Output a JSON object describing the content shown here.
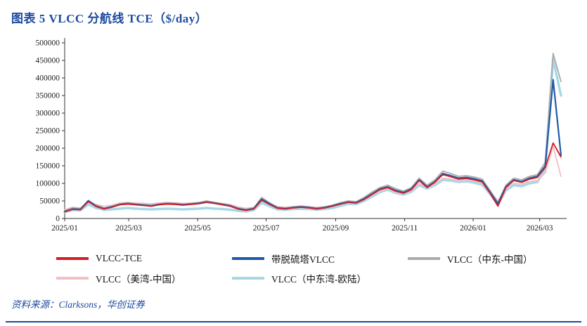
{
  "header": {
    "title": "图表 5  VLCC 分航线 TCE（$/day）"
  },
  "source": {
    "text": "资料来源：Clarksons，华创证券"
  },
  "colors": {
    "accent": "#1D4BA0",
    "axis": "#333333"
  },
  "legend": {
    "items": [
      {
        "label": "VLCC-TCE",
        "color": "#D41E26"
      },
      {
        "label": "带脱硫塔VLCC",
        "color": "#1F5BA8"
      },
      {
        "label": "VLCC（中东-中国）",
        "color": "#ABABAB"
      },
      {
        "label": "VLCC（美湾-中国）",
        "color": "#F3BFC3"
      },
      {
        "label": "VLCC（中东湾-欧陆）",
        "color": "#A8D8E8"
      }
    ]
  },
  "chart_data": {
    "type": "line",
    "title": "VLCC 分航线 TCE（$/day）",
    "ylabel": "",
    "xlabel": "",
    "ylim": [
      0,
      500000
    ],
    "grid": false,
    "legend_position": "bottom",
    "y_ticks": [
      0,
      50000,
      100000,
      150000,
      200000,
      250000,
      300000,
      350000,
      400000,
      450000,
      500000
    ],
    "x_ticks": [
      {
        "label": "2025/01",
        "f": 0.0
      },
      {
        "label": "2025/03",
        "f": 0.129
      },
      {
        "label": "2025/05",
        "f": 0.268
      },
      {
        "label": "2025/07",
        "f": 0.406
      },
      {
        "label": "2025/09",
        "f": 0.546
      },
      {
        "label": "2025/11",
        "f": 0.685
      },
      {
        "label": "2026/01",
        "f": 0.823
      },
      {
        "label": "2026/03",
        "f": 0.957
      }
    ],
    "x_range": [
      "2025/01",
      "2026/03"
    ],
    "series": [
      {
        "name": "VLCC-TCE",
        "color": "#D41E26",
        "values": [
          19000,
          26000,
          25000,
          48000,
          34000,
          27000,
          32000,
          39000,
          41000,
          39000,
          37000,
          35000,
          39000,
          41000,
          40000,
          38000,
          40000,
          42000,
          46000,
          43000,
          39000,
          35000,
          27000,
          23000,
          27000,
          52000,
          40000,
          29000,
          27000,
          30000,
          32000,
          30000,
          27000,
          30000,
          35000,
          41000,
          46000,
          44000,
          54000,
          68000,
          82000,
          88000,
          78000,
          72000,
          82000,
          108000,
          88000,
          103000,
          125000,
          119000,
          112000,
          114000,
          110000,
          104000,
          72000,
          35000,
          88000,
          108000,
          103000,
          112000,
          117000,
          145000,
          215000,
          175000
        ]
      },
      {
        "name": "带脱硫塔VLCC",
        "color": "#1F5BA8",
        "values": [
          20000,
          27000,
          26000,
          50000,
          35000,
          28000,
          33000,
          40000,
          42000,
          40000,
          38000,
          36000,
          40000,
          42000,
          41000,
          39000,
          41000,
          43000,
          47000,
          44000,
          40000,
          36000,
          28000,
          24000,
          28000,
          55000,
          42000,
          30000,
          28000,
          31000,
          33000,
          31000,
          28000,
          31000,
          36000,
          42000,
          47000,
          45000,
          56000,
          70000,
          84000,
          90000,
          80000,
          74000,
          84000,
          110000,
          90000,
          105000,
          128000,
          122000,
          115000,
          117000,
          113000,
          107000,
          75000,
          42000,
          90000,
          110000,
          105000,
          115000,
          120000,
          150000,
          395000,
          180000
        ]
      },
      {
        "name": "VLCC（中东-中国）",
        "color": "#ABABAB",
        "values": [
          22000,
          30000,
          28000,
          52000,
          38000,
          30000,
          35000,
          42000,
          45000,
          42000,
          40000,
          38000,
          42000,
          44000,
          43000,
          41000,
          43000,
          45000,
          50000,
          46000,
          42000,
          38000,
          30000,
          26000,
          30000,
          60000,
          45000,
          32000,
          30000,
          33000,
          35000,
          33000,
          30000,
          33000,
          38000,
          45000,
          50000,
          48000,
          60000,
          75000,
          88000,
          95000,
          85000,
          78000,
          88000,
          115000,
          95000,
          110000,
          135000,
          128000,
          120000,
          122000,
          118000,
          112000,
          80000,
          45000,
          95000,
          115000,
          110000,
          120000,
          125000,
          160000,
          470000,
          390000
        ]
      },
      {
        "name": "VLCC（美湾-中国）",
        "color": "#F3BFC3",
        "values": [
          25000,
          32000,
          30000,
          45000,
          40000,
          35000,
          38000,
          44000,
          46000,
          44000,
          43000,
          42000,
          44000,
          46000,
          45000,
          43000,
          44000,
          46000,
          48000,
          45000,
          43000,
          40000,
          33000,
          29000,
          32000,
          50000,
          43000,
          34000,
          32000,
          34000,
          36000,
          34000,
          32000,
          34000,
          37000,
          43000,
          47000,
          46000,
          55000,
          65000,
          78000,
          85000,
          76000,
          72000,
          80000,
          100000,
          88000,
          98000,
          115000,
          112000,
          108000,
          110000,
          106000,
          100000,
          78000,
          50000,
          85000,
          100000,
          98000,
          105000,
          108000,
          130000,
          205000,
          120000
        ]
      },
      {
        "name": "VLCC（中东湾-欧陆）",
        "color": "#A8D8E8",
        "values": [
          18000,
          24000,
          23000,
          40000,
          30000,
          25000,
          26000,
          28000,
          30000,
          28000,
          27000,
          26000,
          27000,
          28000,
          27000,
          26000,
          27000,
          28000,
          30000,
          28000,
          27000,
          25000,
          22000,
          20000,
          24000,
          45000,
          35000,
          26000,
          25000,
          27000,
          28000,
          27000,
          25000,
          27000,
          30000,
          36000,
          42000,
          41000,
          50000,
          62000,
          75000,
          82000,
          73000,
          68000,
          76000,
          95000,
          85000,
          95000,
          110000,
          108000,
          104000,
          106000,
          102000,
          96000,
          70000,
          40000,
          80000,
          95000,
          92000,
          100000,
          104000,
          140000,
          455000,
          350000
        ]
      }
    ]
  }
}
